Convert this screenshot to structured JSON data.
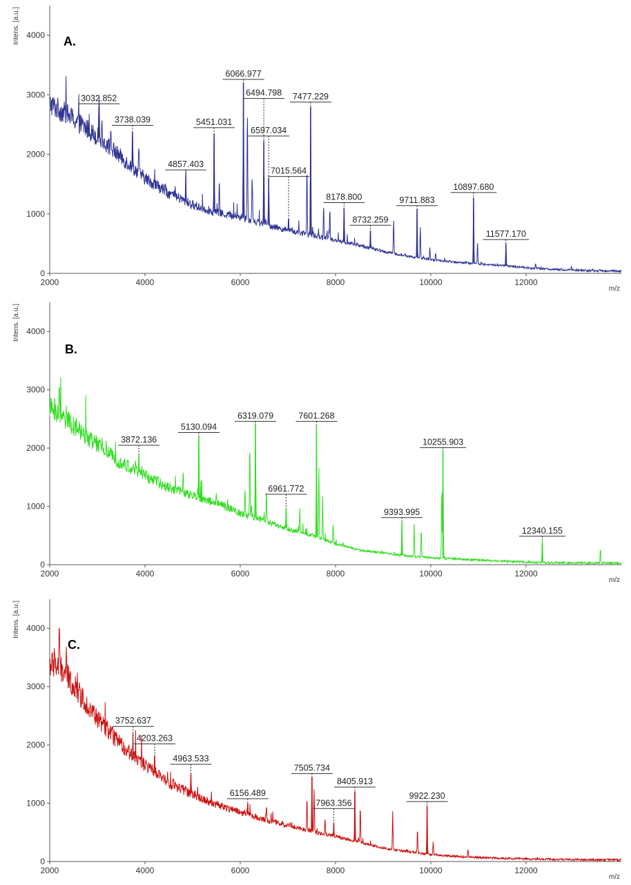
{
  "chart_data": [
    {
      "type": "line",
      "panel_label": "A.",
      "xlabel": "m/z",
      "ylabel": "Intens. [a.u.]",
      "xlim": [
        2000,
        14000
      ],
      "ylim": [
        0,
        4500
      ],
      "xticks": [
        2000,
        4000,
        6000,
        8000,
        10000,
        12000
      ],
      "yticks": [
        0,
        1000,
        2000,
        3000,
        4000
      ],
      "grid": false,
      "color": "#2e3192",
      "baseline": [
        [
          2000,
          2850
        ],
        [
          2400,
          2650
        ],
        [
          3000,
          2300
        ],
        [
          3500,
          1950
        ],
        [
          4000,
          1600
        ],
        [
          4500,
          1350
        ],
        [
          5000,
          1150
        ],
        [
          5500,
          1020
        ],
        [
          6000,
          950
        ],
        [
          6500,
          830
        ],
        [
          7000,
          720
        ],
        [
          7500,
          640
        ],
        [
          8000,
          560
        ],
        [
          8500,
          470
        ],
        [
          9000,
          370
        ],
        [
          9500,
          290
        ],
        [
          10000,
          230
        ],
        [
          10500,
          190
        ],
        [
          11000,
          160
        ],
        [
          11500,
          130
        ],
        [
          12000,
          95
        ],
        [
          12500,
          70
        ],
        [
          13000,
          55
        ],
        [
          13500,
          45
        ],
        [
          14000,
          40
        ]
      ],
      "peaks": [
        {
          "x": 3032.852,
          "y": 2800,
          "label": "3032.852"
        },
        {
          "x": 3738.039,
          "y": 2370,
          "label": "3738.039"
        },
        {
          "x": 4857.403,
          "y": 1650,
          "label": "4857.403"
        },
        {
          "x": 5451.031,
          "y": 2350,
          "label": "5451.031"
        },
        {
          "x": 6066.977,
          "y": 3200,
          "label": "6066.977"
        },
        {
          "x": 6494.798,
          "y": 2200,
          "label": "6494.798"
        },
        {
          "x": 6597.034,
          "y": 1600,
          "label": "6597.034"
        },
        {
          "x": 7015.564,
          "y": 920,
          "label": "7015.564"
        },
        {
          "x": 7477.229,
          "y": 2800,
          "label": "7477.229"
        },
        {
          "x": 8178.8,
          "y": 1100,
          "label": "8178.800"
        },
        {
          "x": 8732.259,
          "y": 720,
          "label": "8732.259"
        },
        {
          "x": 9711.883,
          "y": 1080,
          "label": "9711.883"
        },
        {
          "x": 10897.68,
          "y": 1270,
          "label": "10897.680"
        },
        {
          "x": 11577.17,
          "y": 500,
          "label": "11577.170"
        }
      ],
      "minor_peaks": [
        [
          2350,
          3000
        ],
        [
          3100,
          2550
        ],
        [
          3280,
          2400
        ],
        [
          3870,
          2150
        ],
        [
          5560,
          1550
        ],
        [
          6150,
          2800
        ],
        [
          6250,
          1700
        ],
        [
          7400,
          1800
        ],
        [
          7750,
          1150
        ],
        [
          7880,
          1100
        ],
        [
          9220,
          900
        ],
        [
          9780,
          800
        ],
        [
          9980,
          430
        ],
        [
          10100,
          350
        ],
        [
          10980,
          520
        ],
        [
          12200,
          180
        ],
        [
          12950,
          120
        ]
      ],
      "labels": [
        {
          "text": "3032.852",
          "x": 3032.852,
          "peak_y": 2800,
          "label_y": 2860
        },
        {
          "text": "3738.039",
          "x": 3738.039,
          "peak_y": 2370,
          "label_y": 2500
        },
        {
          "text": "4857.403",
          "x": 4857.403,
          "peak_y": 1650,
          "label_y": 1750
        },
        {
          "text": "5451.031",
          "x": 5451.031,
          "peak_y": 2350,
          "label_y": 2460
        },
        {
          "text": "6066.977",
          "x": 6066.977,
          "peak_y": 3200,
          "label_y": 3270
        },
        {
          "text": "6494.798",
          "x": 6494.798,
          "peak_y": 2200,
          "label_y": 2950
        },
        {
          "text": "6597.034",
          "x": 6597.034,
          "peak_y": 1600,
          "label_y": 2320
        },
        {
          "text": "7015.564",
          "x": 7015.564,
          "peak_y": 920,
          "label_y": 1640
        },
        {
          "text": "7477.229",
          "x": 7477.229,
          "peak_y": 2800,
          "label_y": 2890
        },
        {
          "text": "8178.800",
          "x": 8178.8,
          "peak_y": 1100,
          "label_y": 1200
        },
        {
          "text": "8732.259",
          "x": 8732.259,
          "peak_y": 720,
          "label_y": 820
        },
        {
          "text": "9711.883",
          "x": 9711.883,
          "peak_y": 1080,
          "label_y": 1150
        },
        {
          "text": "10897.680",
          "x": 10897.68,
          "peak_y": 1270,
          "label_y": 1370
        },
        {
          "text": "11577.170",
          "x": 11577.17,
          "peak_y": 500,
          "label_y": 580
        }
      ]
    },
    {
      "type": "line",
      "panel_label": "B.",
      "xlabel": "m/z",
      "ylabel": "Intens. [a.u.]",
      "xlim": [
        2000,
        14000
      ],
      "ylim": [
        0,
        4500
      ],
      "xticks": [
        2000,
        4000,
        6000,
        8000,
        10000,
        12000
      ],
      "yticks": [
        0,
        1000,
        2000,
        3000,
        4000
      ],
      "grid": false,
      "color": "#33dd22",
      "baseline": [
        [
          2000,
          2700
        ],
        [
          2400,
          2450
        ],
        [
          3000,
          2050
        ],
        [
          3500,
          1750
        ],
        [
          4000,
          1520
        ],
        [
          4500,
          1330
        ],
        [
          5000,
          1180
        ],
        [
          5500,
          1060
        ],
        [
          6000,
          880
        ],
        [
          6500,
          760
        ],
        [
          7000,
          610
        ],
        [
          7500,
          500
        ],
        [
          8000,
          360
        ],
        [
          8500,
          250
        ],
        [
          9000,
          200
        ],
        [
          9500,
          150
        ],
        [
          10000,
          120
        ],
        [
          10500,
          100
        ],
        [
          11000,
          80
        ],
        [
          11500,
          60
        ],
        [
          12000,
          45
        ],
        [
          12500,
          35
        ],
        [
          13000,
          30
        ],
        [
          13500,
          30
        ],
        [
          14000,
          30
        ]
      ],
      "peaks": [
        {
          "x": 3872.136,
          "y": 1900,
          "label": "3872.136"
        },
        {
          "x": 5130.094,
          "y": 2200,
          "label": "5130.094"
        },
        {
          "x": 6319.079,
          "y": 2400,
          "label": "6319.079"
        },
        {
          "x": 6961.772,
          "y": 950,
          "label": "6961.772"
        },
        {
          "x": 7601.268,
          "y": 2400,
          "label": "7601.268"
        },
        {
          "x": 9393.995,
          "y": 750,
          "label": "9393.995"
        },
        {
          "x": 10255.903,
          "y": 1950,
          "label": "10255.903"
        },
        {
          "x": 12340.155,
          "y": 400,
          "label": "12340.155"
        }
      ],
      "minor_peaks": [
        [
          2200,
          3050
        ],
        [
          2350,
          2800
        ],
        [
          3100,
          2100
        ],
        [
          3800,
          1700
        ],
        [
          4800,
          1600
        ],
        [
          5500,
          1200
        ],
        [
          6100,
          1350
        ],
        [
          6200,
          2050
        ],
        [
          6550,
          1300
        ],
        [
          7250,
          950
        ],
        [
          7650,
          1700
        ],
        [
          7730,
          1200
        ],
        [
          7950,
          700
        ],
        [
          9650,
          700
        ],
        [
          9800,
          600
        ],
        [
          10230,
          1350
        ],
        [
          13560,
          300
        ]
      ],
      "labels": [
        {
          "text": "3872.136",
          "x": 3872.136,
          "peak_y": 1900,
          "label_y": 2060
        },
        {
          "text": "5130.094",
          "x": 5130.094,
          "peak_y": 2200,
          "label_y": 2280
        },
        {
          "text": "6319.079",
          "x": 6319.079,
          "peak_y": 2400,
          "label_y": 2470
        },
        {
          "text": "6961.772",
          "x": 6961.772,
          "peak_y": 950,
          "label_y": 1220
        },
        {
          "text": "7601.268",
          "x": 7601.268,
          "peak_y": 2400,
          "label_y": 2470
        },
        {
          "text": "9393.995",
          "x": 9393.995,
          "peak_y": 750,
          "label_y": 820
        },
        {
          "text": "10255.903",
          "x": 10255.903,
          "peak_y": 1950,
          "label_y": 2020
        },
        {
          "text": "12340.155",
          "x": 12340.155,
          "peak_y": 400,
          "label_y": 500
        }
      ]
    },
    {
      "type": "line",
      "panel_label": "C.",
      "xlabel": "m/z",
      "ylabel": "Intens. [a.u.]",
      "xlim": [
        2000,
        14000
      ],
      "ylim": [
        0,
        4500
      ],
      "xticks": [
        2000,
        4000,
        6000,
        8000,
        10000,
        12000
      ],
      "yticks": [
        0,
        1000,
        2000,
        3000,
        4000
      ],
      "grid": false,
      "color": "#cc1111",
      "baseline": [
        [
          2000,
          3400
        ],
        [
          2300,
          3250
        ],
        [
          2600,
          2900
        ],
        [
          3000,
          2450
        ],
        [
          3500,
          2000
        ],
        [
          4000,
          1650
        ],
        [
          4500,
          1350
        ],
        [
          5000,
          1150
        ],
        [
          5500,
          980
        ],
        [
          6000,
          850
        ],
        [
          6500,
          720
        ],
        [
          7000,
          620
        ],
        [
          7500,
          520
        ],
        [
          8000,
          430
        ],
        [
          8500,
          330
        ],
        [
          9000,
          230
        ],
        [
          9500,
          170
        ],
        [
          10000,
          120
        ],
        [
          10500,
          90
        ],
        [
          11000,
          70
        ],
        [
          11500,
          55
        ],
        [
          12000,
          45
        ],
        [
          12500,
          38
        ],
        [
          13000,
          32
        ],
        [
          14000,
          28
        ]
      ],
      "peaks": [
        {
          "x": 3752.637,
          "y": 1750,
          "label": "3752.637"
        },
        {
          "x": 4203.263,
          "y": 1800,
          "label": "4203.263"
        },
        {
          "x": 4963.533,
          "y": 1500,
          "label": "4963.533"
        },
        {
          "x": 6156.489,
          "y": 1000,
          "label": "6156.489"
        },
        {
          "x": 7505.734,
          "y": 1450,
          "label": "7505.734"
        },
        {
          "x": 7963.356,
          "y": 650,
          "label": "7963.356"
        },
        {
          "x": 8405.913,
          "y": 1200,
          "label": "8405.913"
        },
        {
          "x": 9922.23,
          "y": 950,
          "label": "9922.230"
        }
      ],
      "minor_peaks": [
        [
          2200,
          4200
        ],
        [
          2100,
          3700
        ],
        [
          2350,
          3500
        ],
        [
          3300,
          2150
        ],
        [
          4600,
          1400
        ],
        [
          4850,
          1300
        ],
        [
          5100,
          1250
        ],
        [
          6550,
          950
        ],
        [
          7400,
          1100
        ],
        [
          7550,
          1250
        ],
        [
          7780,
          750
        ],
        [
          8520,
          950
        ],
        [
          9200,
          870
        ],
        [
          9720,
          570
        ],
        [
          10050,
          350
        ],
        [
          10780,
          200
        ]
      ],
      "labels": [
        {
          "text": "3752.637",
          "x": 3752.637,
          "peak_y": 1750,
          "label_y": 2330
        },
        {
          "text": "4203.263",
          "x": 4203.263,
          "peak_y": 1800,
          "label_y": 2030
        },
        {
          "text": "4963.533",
          "x": 4963.533,
          "peak_y": 1500,
          "label_y": 1680
        },
        {
          "text": "6156.489",
          "x": 6156.489,
          "peak_y": 1000,
          "label_y": 1090
        },
        {
          "text": "7505.734",
          "x": 7505.734,
          "peak_y": 1450,
          "label_y": 1520
        },
        {
          "text": "7963.356",
          "x": 7963.356,
          "peak_y": 650,
          "label_y": 920
        },
        {
          "text": "8405.913",
          "x": 8405.913,
          "peak_y": 1200,
          "label_y": 1290
        },
        {
          "text": "9922.230",
          "x": 9922.23,
          "peak_y": 950,
          "label_y": 1040
        }
      ]
    }
  ]
}
